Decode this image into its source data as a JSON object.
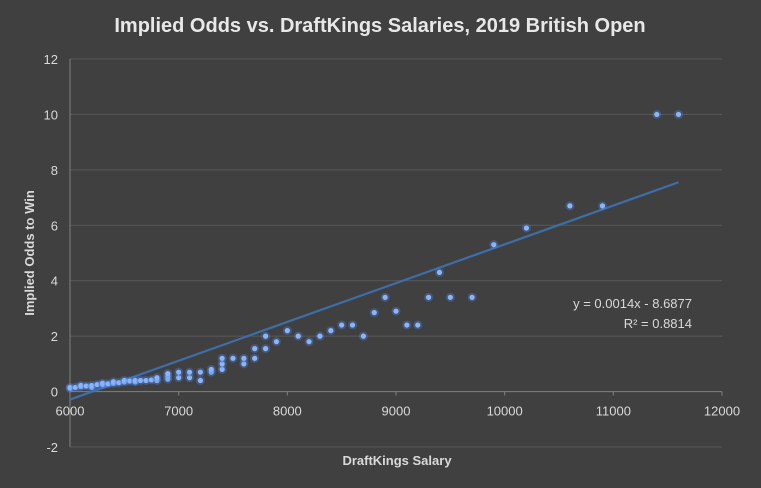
{
  "chart_data": {
    "type": "scatter",
    "title": "Implied Odds vs. DraftKings Salaries, 2019 British Open",
    "xlabel": "DraftKings Salary",
    "ylabel": "Implied Odds to Win",
    "xlim": [
      6000,
      12000
    ],
    "ylim": [
      -2,
      12
    ],
    "x_ticks": [
      6000,
      7000,
      8000,
      9000,
      10000,
      11000,
      12000
    ],
    "y_ticks": [
      -2,
      0,
      2,
      4,
      6,
      8,
      10,
      12
    ],
    "grid": "horizontal",
    "legend": "none",
    "points": [
      [
        6000,
        0.12
      ],
      [
        6000,
        0.15
      ],
      [
        6050,
        0.15
      ],
      [
        6100,
        0.18
      ],
      [
        6100,
        0.22
      ],
      [
        6150,
        0.2
      ],
      [
        6200,
        0.15
      ],
      [
        6200,
        0.22
      ],
      [
        6250,
        0.25
      ],
      [
        6300,
        0.25
      ],
      [
        6300,
        0.3
      ],
      [
        6350,
        0.28
      ],
      [
        6400,
        0.3
      ],
      [
        6400,
        0.35
      ],
      [
        6450,
        0.32
      ],
      [
        6500,
        0.35
      ],
      [
        6500,
        0.4
      ],
      [
        6550,
        0.38
      ],
      [
        6600,
        0.35
      ],
      [
        6600,
        0.4
      ],
      [
        6650,
        0.4
      ],
      [
        6700,
        0.4
      ],
      [
        6750,
        0.42
      ],
      [
        6800,
        0.4
      ],
      [
        6800,
        0.5
      ],
      [
        6900,
        0.45
      ],
      [
        6900,
        0.55
      ],
      [
        6900,
        0.65
      ],
      [
        7000,
        0.5
      ],
      [
        7000,
        0.7
      ],
      [
        7100,
        0.5
      ],
      [
        7100,
        0.7
      ],
      [
        7200,
        0.4
      ],
      [
        7200,
        0.7
      ],
      [
        7300,
        0.7
      ],
      [
        7300,
        0.8
      ],
      [
        7400,
        0.8
      ],
      [
        7400,
        1.0
      ],
      [
        7400,
        1.2
      ],
      [
        7500,
        1.2
      ],
      [
        7600,
        1.0
      ],
      [
        7600,
        1.2
      ],
      [
        7700,
        1.2
      ],
      [
        7700,
        1.55
      ],
      [
        7800,
        1.55
      ],
      [
        7800,
        2.0
      ],
      [
        7900,
        1.8
      ],
      [
        8000,
        2.2
      ],
      [
        8100,
        2.0
      ],
      [
        8200,
        1.8
      ],
      [
        8300,
        2.0
      ],
      [
        8400,
        2.2
      ],
      [
        8500,
        2.4
      ],
      [
        8600,
        2.4
      ],
      [
        8700,
        2.0
      ],
      [
        8800,
        2.85
      ],
      [
        8900,
        3.4
      ],
      [
        9000,
        2.9
      ],
      [
        9100,
        2.4
      ],
      [
        9200,
        2.4
      ],
      [
        9300,
        3.4
      ],
      [
        9400,
        4.3
      ],
      [
        9500,
        3.4
      ],
      [
        9700,
        3.4
      ],
      [
        9900,
        5.3
      ],
      [
        10200,
        5.9
      ],
      [
        10600,
        6.7
      ],
      [
        10900,
        6.7
      ],
      [
        11400,
        10.0
      ],
      [
        11600,
        10.0
      ]
    ],
    "trendline": {
      "slope": 0.0014,
      "intercept": -8.6877,
      "x_range": [
        6000,
        11600
      ]
    },
    "equation_text": "y = 0.0014x - 8.6877",
    "r2_text": "R² = 0.8814",
    "colors": {
      "background": "#404040",
      "point": "#4a86e8",
      "trendline": "#3d6ea8",
      "grid": "#595959",
      "axis": "#808080"
    }
  }
}
